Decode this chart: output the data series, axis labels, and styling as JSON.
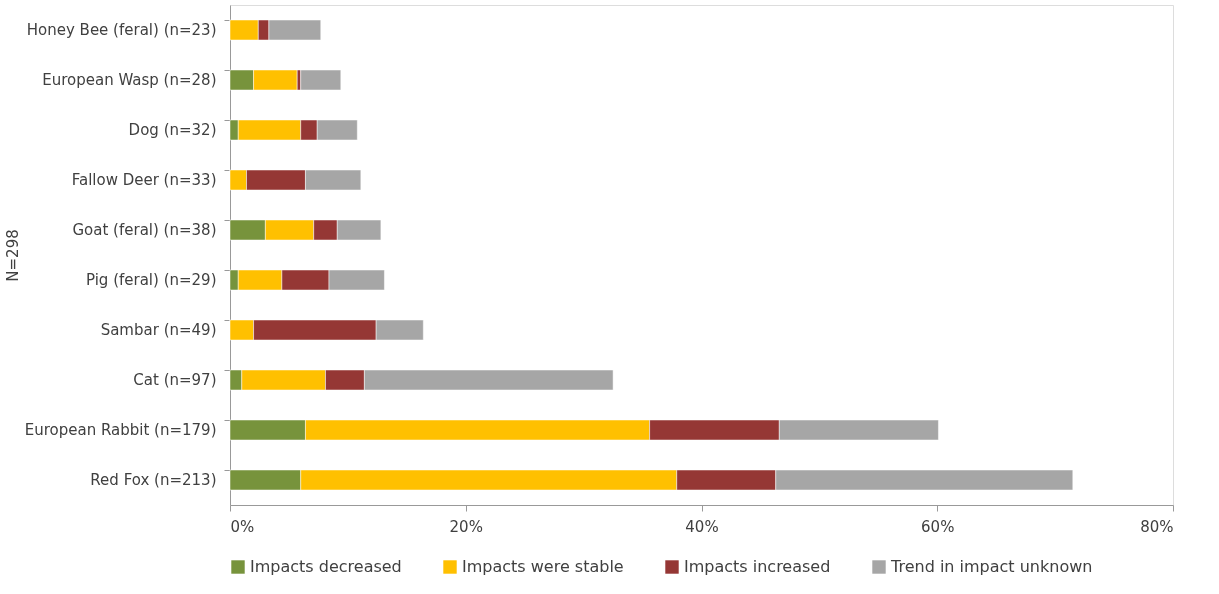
{
  "chart_data": {
    "type": "bar",
    "orientation": "horizontal",
    "stacked": true,
    "ylabel": "N=298",
    "categories": [
      "Honey Bee (feral) (n=23)",
      "European Wasp (n=28)",
      "Dog (n=32)",
      "Fallow Deer (n=33)",
      "Goat (feral) (n=38)",
      "Pig (feral) (n=29)",
      "Sambar (n=49)",
      "Cat (n=97)",
      "European Rabbit (n=179)",
      "Red Fox (n=213)"
    ],
    "series": [
      {
        "name": "Impacts decreased",
        "color": "#77933c",
        "values": [
          0,
          2.0,
          0.7,
          0,
          3.0,
          0.7,
          0,
          1.0,
          6.4,
          6.0
        ]
      },
      {
        "name": "Impacts were stable",
        "color": "#ffc000",
        "values": [
          2.4,
          3.7,
          5.3,
          1.4,
          4.1,
          3.7,
          2.0,
          7.1,
          29.2,
          31.9
        ]
      },
      {
        "name": "Impacts increased",
        "color": "#953735",
        "values": [
          0.9,
          0.3,
          1.4,
          5.0,
          2.0,
          4.0,
          10.4,
          3.3,
          11.0,
          8.4
        ]
      },
      {
        "name": "Trend in impact unknown",
        "color": "#a6a6a6",
        "values": [
          4.4,
          3.4,
          3.4,
          4.7,
          3.7,
          4.7,
          4.0,
          21.1,
          13.5,
          25.2
        ]
      }
    ],
    "xlim": [
      0,
      80
    ],
    "xticks": [
      {
        "value": 0,
        "label": "0%"
      },
      {
        "value": 20,
        "label": "20%"
      },
      {
        "value": 40,
        "label": "40%"
      },
      {
        "value": 60,
        "label": "60%"
      },
      {
        "value": 80,
        "label": "80%"
      }
    ],
    "grid": false,
    "legend": "bottom"
  }
}
